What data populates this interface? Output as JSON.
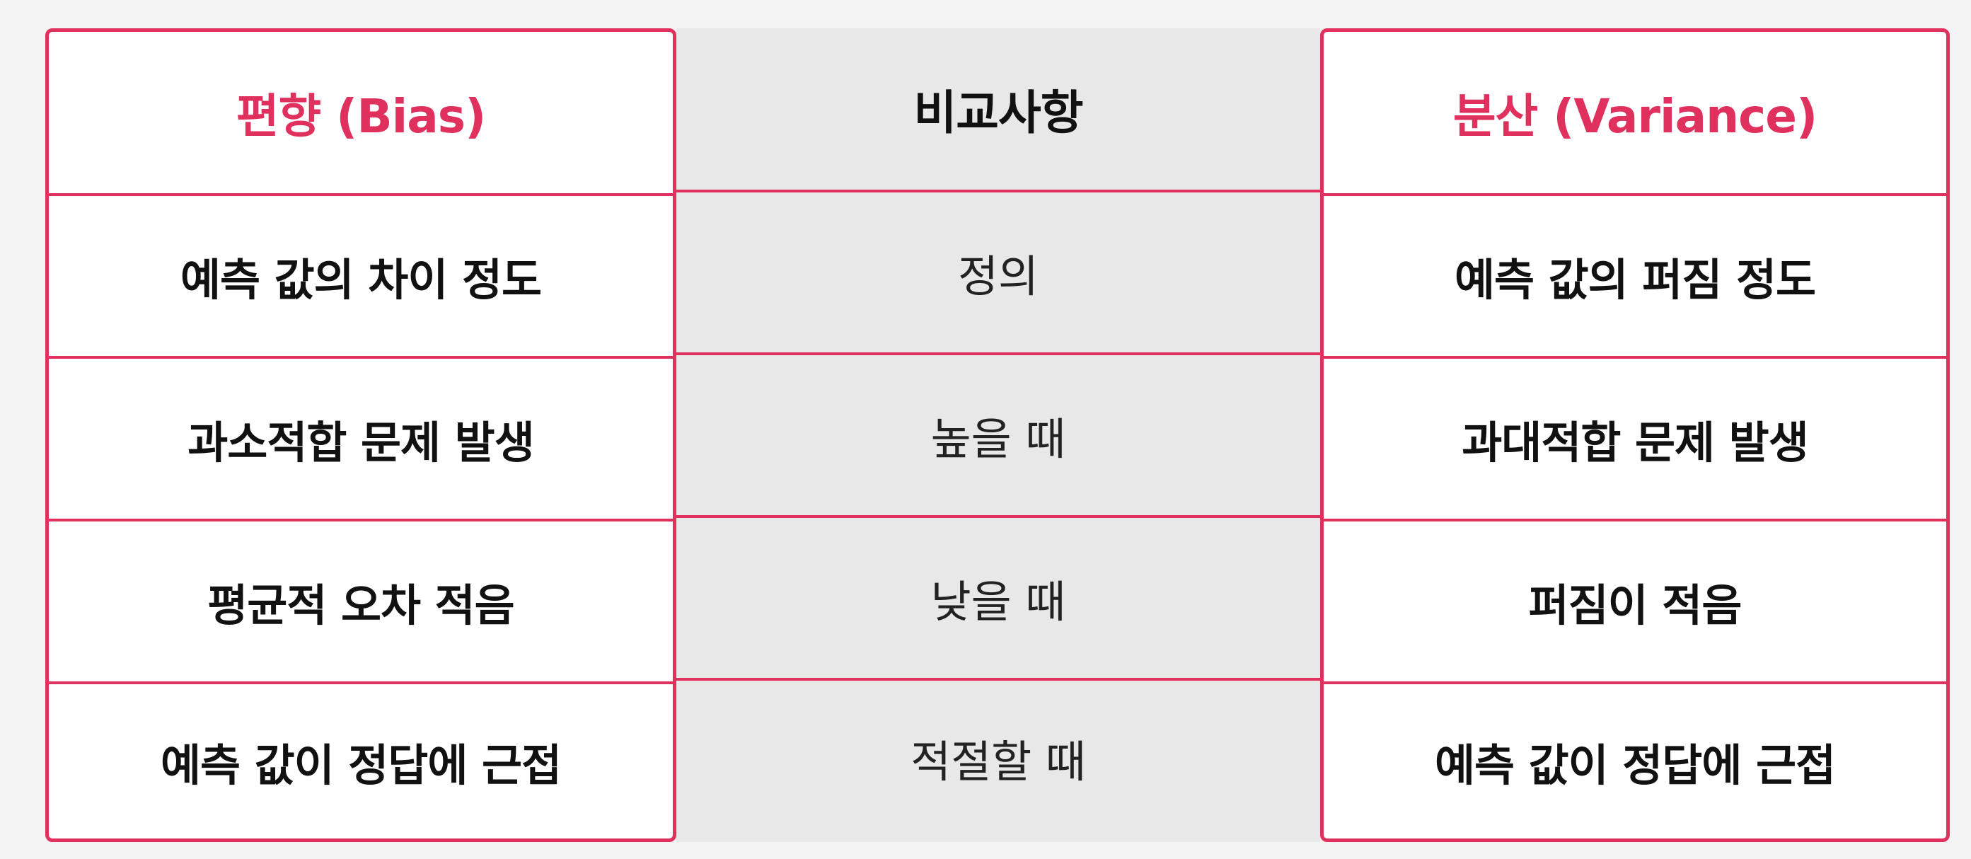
{
  "table": {
    "headers": {
      "bias": "편향 (Bias)",
      "comparison": "비교사항",
      "variance": "분산 (Variance)"
    },
    "rows": [
      {
        "bias": "예측 값의 차이 정도",
        "comparison": "정의",
        "variance": "예측 값의 퍼짐 정도"
      },
      {
        "bias": "과소적합 문제 발생",
        "comparison": "높을 때",
        "variance": "과대적합 문제 발생"
      },
      {
        "bias": "평균적 오차 적음",
        "comparison": "낮을 때",
        "variance": "퍼짐이 적음"
      },
      {
        "bias": "예측 값이 정답에 근접",
        "comparison": "적절할 때",
        "variance": "예측 값이 정답에 근접"
      }
    ]
  },
  "colors": {
    "accent": "#e0305e",
    "middle_column_background": "#e8e8e8",
    "side_column_background": "#ffffff",
    "page_background": "#f3f3f3"
  }
}
